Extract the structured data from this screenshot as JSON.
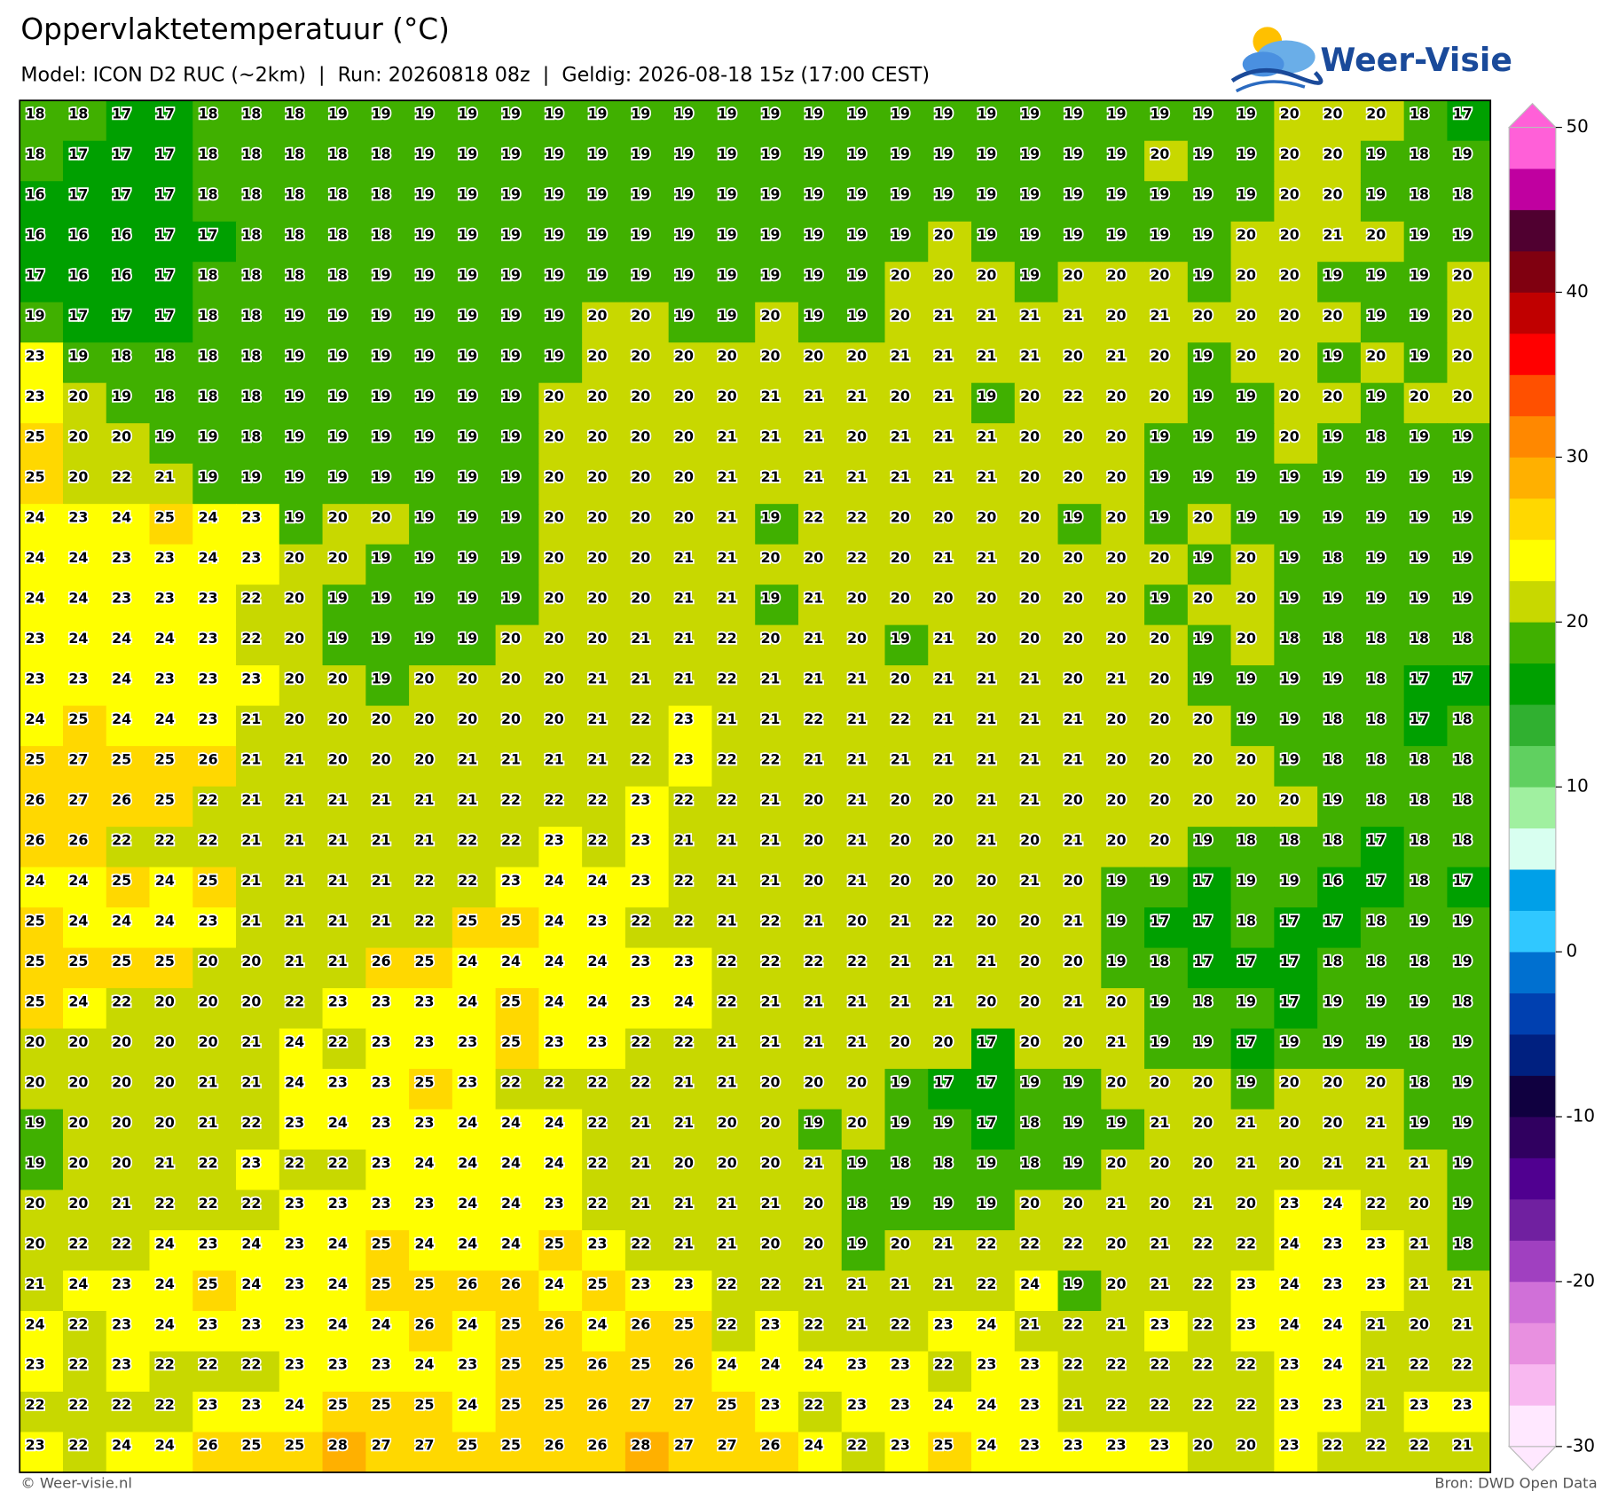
{
  "header": {
    "title": "Oppervlaktetemperatuur (°C)",
    "subtitle": "Model: ICON D2 RUC (~2km)  |  Run: 20260818 08z  |  Geldig: 2026-08-18 15z (17:00 CEST)",
    "logo": "Weer-Visie"
  },
  "map": {
    "rows": [
      [
        18,
        18,
        17,
        17,
        18,
        18,
        18,
        19,
        19,
        19,
        19,
        19,
        19,
        19,
        19,
        19,
        19,
        19,
        19,
        19,
        19,
        19,
        19,
        19,
        19,
        19,
        19,
        19,
        19,
        20,
        20,
        20,
        18,
        17
      ],
      [
        18,
        17,
        17,
        17,
        18,
        18,
        18,
        18,
        18,
        19,
        19,
        19,
        19,
        19,
        19,
        19,
        19,
        19,
        19,
        19,
        19,
        19,
        19,
        19,
        19,
        19,
        20,
        19,
        19,
        20,
        20,
        19,
        18,
        19
      ],
      [
        16,
        17,
        17,
        17,
        18,
        18,
        18,
        18,
        18,
        19,
        19,
        19,
        19,
        19,
        19,
        19,
        19,
        19,
        19,
        19,
        19,
        19,
        19,
        19,
        19,
        19,
        19,
        19,
        19,
        20,
        20,
        19,
        18,
        18
      ],
      [
        16,
        16,
        16,
        17,
        17,
        18,
        18,
        18,
        18,
        19,
        19,
        19,
        19,
        19,
        19,
        19,
        19,
        19,
        19,
        19,
        19,
        20,
        19,
        19,
        19,
        19,
        19,
        19,
        20,
        20,
        21,
        20,
        19,
        19
      ],
      [
        17,
        16,
        16,
        17,
        18,
        18,
        18,
        18,
        19,
        19,
        19,
        19,
        19,
        19,
        19,
        19,
        19,
        19,
        19,
        19,
        20,
        20,
        20,
        19,
        20,
        20,
        20,
        19,
        20,
        20,
        19,
        19,
        19,
        20
      ],
      [
        19,
        17,
        17,
        17,
        18,
        18,
        19,
        19,
        19,
        19,
        19,
        19,
        19,
        20,
        20,
        19,
        19,
        20,
        19,
        19,
        20,
        21,
        21,
        21,
        21,
        20,
        21,
        20,
        20,
        20,
        20,
        19,
        19,
        20
      ],
      [
        23,
        19,
        18,
        18,
        18,
        18,
        19,
        19,
        19,
        19,
        19,
        19,
        19,
        20,
        20,
        20,
        20,
        20,
        20,
        20,
        21,
        21,
        21,
        21,
        20,
        21,
        20,
        19,
        20,
        20,
        19,
        20,
        19,
        20
      ],
      [
        23,
        20,
        19,
        18,
        18,
        18,
        19,
        19,
        19,
        19,
        19,
        19,
        20,
        20,
        20,
        20,
        20,
        21,
        21,
        21,
        20,
        21,
        19,
        20,
        22,
        20,
        20,
        19,
        19,
        20,
        20,
        19,
        20,
        20
      ],
      [
        25,
        20,
        20,
        19,
        19,
        18,
        19,
        19,
        19,
        19,
        19,
        19,
        20,
        20,
        20,
        20,
        21,
        21,
        21,
        20,
        21,
        21,
        21,
        20,
        20,
        20,
        19,
        19,
        19,
        20,
        19,
        18,
        19,
        19
      ],
      [
        25,
        20,
        22,
        21,
        19,
        19,
        19,
        19,
        19,
        19,
        19,
        19,
        20,
        20,
        20,
        20,
        21,
        21,
        21,
        21,
        21,
        21,
        21,
        20,
        20,
        20,
        19,
        19,
        19,
        19,
        19,
        19,
        19,
        19
      ],
      [
        24,
        23,
        24,
        25,
        24,
        23,
        19,
        20,
        20,
        19,
        19,
        19,
        20,
        20,
        20,
        20,
        21,
        19,
        22,
        22,
        20,
        20,
        20,
        20,
        19,
        20,
        19,
        20,
        19,
        19,
        19,
        19,
        19,
        19
      ],
      [
        24,
        24,
        23,
        23,
        24,
        23,
        20,
        20,
        19,
        19,
        19,
        19,
        20,
        20,
        20,
        21,
        21,
        20,
        20,
        22,
        20,
        21,
        21,
        20,
        20,
        20,
        20,
        19,
        20,
        19,
        18,
        19,
        19,
        19
      ],
      [
        24,
        24,
        23,
        23,
        23,
        22,
        20,
        19,
        19,
        19,
        19,
        19,
        20,
        20,
        20,
        21,
        21,
        19,
        21,
        20,
        20,
        20,
        20,
        20,
        20,
        20,
        19,
        20,
        20,
        19,
        19,
        19,
        19,
        19
      ],
      [
        23,
        24,
        24,
        24,
        23,
        22,
        20,
        19,
        19,
        19,
        19,
        20,
        20,
        20,
        21,
        21,
        22,
        20,
        21,
        20,
        19,
        21,
        20,
        20,
        20,
        20,
        20,
        19,
        20,
        18,
        18,
        18,
        18,
        18
      ],
      [
        23,
        23,
        24,
        23,
        23,
        23,
        20,
        20,
        19,
        20,
        20,
        20,
        20,
        21,
        21,
        21,
        22,
        21,
        21,
        21,
        20,
        21,
        21,
        21,
        20,
        21,
        20,
        19,
        19,
        19,
        19,
        18,
        17,
        17
      ],
      [
        24,
        25,
        24,
        24,
        23,
        21,
        20,
        20,
        20,
        20,
        20,
        20,
        20,
        21,
        22,
        23,
        21,
        21,
        22,
        21,
        22,
        21,
        21,
        21,
        21,
        20,
        20,
        20,
        19,
        19,
        18,
        18,
        17,
        18
      ],
      [
        25,
        27,
        25,
        25,
        26,
        21,
        21,
        20,
        20,
        20,
        21,
        21,
        21,
        21,
        22,
        23,
        22,
        22,
        21,
        21,
        21,
        21,
        21,
        21,
        21,
        20,
        20,
        20,
        20,
        19,
        18,
        18,
        18,
        18
      ],
      [
        26,
        27,
        26,
        25,
        22,
        21,
        21,
        21,
        21,
        21,
        21,
        22,
        22,
        22,
        23,
        22,
        22,
        21,
        20,
        21,
        20,
        20,
        21,
        21,
        20,
        20,
        20,
        20,
        20,
        20,
        19,
        18,
        18,
        18
      ],
      [
        26,
        26,
        22,
        22,
        22,
        21,
        21,
        21,
        21,
        21,
        22,
        22,
        23,
        22,
        23,
        21,
        21,
        21,
        20,
        21,
        20,
        20,
        21,
        20,
        21,
        20,
        20,
        19,
        18,
        18,
        18,
        17,
        18,
        18
      ],
      [
        24,
        24,
        25,
        24,
        25,
        21,
        21,
        21,
        21,
        22,
        22,
        23,
        24,
        24,
        23,
        22,
        21,
        21,
        20,
        21,
        20,
        20,
        20,
        21,
        20,
        19,
        19,
        17,
        19,
        19,
        16,
        17,
        18,
        17
      ],
      [
        25,
        24,
        24,
        24,
        23,
        21,
        21,
        21,
        21,
        22,
        25,
        25,
        24,
        23,
        22,
        22,
        21,
        22,
        21,
        20,
        21,
        22,
        20,
        20,
        21,
        19,
        17,
        17,
        18,
        17,
        17,
        18,
        19,
        19
      ],
      [
        25,
        25,
        25,
        25,
        20,
        20,
        21,
        21,
        26,
        25,
        24,
        24,
        24,
        24,
        23,
        23,
        22,
        22,
        22,
        22,
        21,
        21,
        21,
        20,
        20,
        19,
        18,
        17,
        17,
        17,
        18,
        18,
        18,
        19
      ],
      [
        25,
        24,
        22,
        20,
        20,
        20,
        22,
        23,
        23,
        23,
        24,
        25,
        24,
        24,
        23,
        24,
        22,
        21,
        21,
        21,
        21,
        21,
        20,
        20,
        21,
        20,
        19,
        18,
        19,
        17,
        19,
        19,
        19,
        18
      ],
      [
        20,
        20,
        20,
        20,
        20,
        21,
        24,
        22,
        23,
        23,
        23,
        25,
        23,
        23,
        22,
        22,
        21,
        21,
        21,
        21,
        20,
        20,
        17,
        20,
        20,
        21,
        19,
        19,
        17,
        19,
        19,
        19,
        18,
        19
      ],
      [
        20,
        20,
        20,
        20,
        21,
        21,
        24,
        23,
        23,
        25,
        23,
        22,
        22,
        22,
        22,
        21,
        21,
        20,
        20,
        20,
        19,
        17,
        17,
        19,
        19,
        20,
        20,
        20,
        19,
        20,
        20,
        20,
        18,
        19
      ],
      [
        19,
        20,
        20,
        20,
        21,
        22,
        23,
        24,
        23,
        23,
        24,
        24,
        24,
        22,
        21,
        21,
        20,
        20,
        19,
        20,
        19,
        19,
        17,
        18,
        19,
        19,
        21,
        20,
        21,
        20,
        20,
        21,
        19,
        19
      ],
      [
        19,
        20,
        20,
        21,
        22,
        23,
        22,
        22,
        23,
        24,
        24,
        24,
        24,
        22,
        21,
        20,
        20,
        20,
        21,
        19,
        18,
        18,
        19,
        18,
        19,
        20,
        20,
        20,
        21,
        20,
        21,
        21,
        21,
        19
      ],
      [
        20,
        20,
        21,
        22,
        22,
        22,
        23,
        23,
        23,
        23,
        24,
        24,
        23,
        22,
        21,
        21,
        21,
        21,
        20,
        18,
        19,
        19,
        19,
        20,
        20,
        21,
        20,
        21,
        20,
        23,
        24,
        22,
        20,
        19
      ],
      [
        20,
        22,
        22,
        24,
        23,
        24,
        23,
        24,
        25,
        24,
        24,
        24,
        25,
        23,
        22,
        21,
        21,
        20,
        20,
        19,
        20,
        21,
        22,
        22,
        22,
        20,
        21,
        22,
        22,
        24,
        23,
        23,
        21,
        18
      ],
      [
        21,
        24,
        23,
        24,
        25,
        24,
        23,
        24,
        25,
        25,
        26,
        26,
        24,
        25,
        23,
        23,
        22,
        22,
        21,
        21,
        21,
        21,
        22,
        24,
        19,
        20,
        21,
        22,
        23,
        24,
        23,
        23,
        21,
        21
      ],
      [
        24,
        22,
        23,
        24,
        23,
        23,
        23,
        24,
        24,
        26,
        24,
        25,
        26,
        24,
        26,
        25,
        22,
        23,
        22,
        21,
        22,
        23,
        24,
        21,
        22,
        21,
        23,
        22,
        23,
        24,
        24,
        21,
        20,
        21
      ],
      [
        23,
        22,
        23,
        22,
        22,
        22,
        23,
        23,
        23,
        24,
        23,
        25,
        25,
        26,
        25,
        26,
        24,
        24,
        24,
        23,
        23,
        22,
        23,
        23,
        22,
        22,
        22,
        22,
        22,
        23,
        24,
        21,
        22,
        22
      ],
      [
        22,
        22,
        22,
        22,
        23,
        23,
        24,
        25,
        25,
        25,
        24,
        25,
        25,
        26,
        27,
        27,
        25,
        23,
        22,
        23,
        23,
        24,
        24,
        23,
        21,
        22,
        22,
        22,
        22,
        23,
        23,
        21,
        23,
        23
      ],
      [
        23,
        22,
        24,
        24,
        26,
        25,
        25,
        28,
        27,
        27,
        25,
        25,
        26,
        26,
        28,
        27,
        27,
        26,
        24,
        22,
        23,
        25,
        24,
        23,
        23,
        23,
        23,
        20,
        20,
        23,
        22,
        22,
        22,
        21
      ]
    ]
  },
  "colorbar": {
    "lim": [
      -30,
      50
    ],
    "ticks": [
      50,
      40,
      30,
      20,
      10,
      0,
      -10,
      -20,
      -30
    ],
    "colors": [
      "#ffe8ff",
      "#f8b8f0",
      "#e890e0",
      "#d070d8",
      "#a040c0",
      "#7020a0",
      "#500090",
      "#300060",
      "#100040",
      "#002080",
      "#0040b0",
      "#0070d0",
      "#30c8ff",
      "#00a0e8",
      "#d8fff0",
      "#a0f0a0",
      "#60d060",
      "#30b030",
      "#00a000",
      "#40b000",
      "#c8d800",
      "#ffff00",
      "#ffd800",
      "#ffb000",
      "#ff8800",
      "#ff5000",
      "#ff0000",
      "#c00000",
      "#800010",
      "#500030",
      "#c000a0",
      "#ff60d8"
    ]
  },
  "footer": {
    "left": "© Weer-visie.nl",
    "right": "Bron: DWD Open Data"
  }
}
